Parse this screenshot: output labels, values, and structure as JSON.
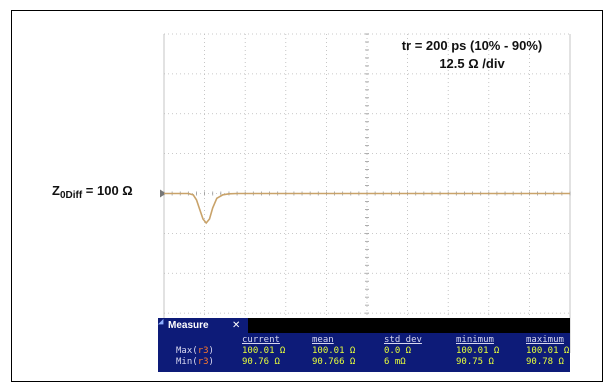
{
  "annotations": {
    "rise_time": "tr = 200 ps (10% - 90%)",
    "scale": "12.5 Ω /div",
    "impedance_prefix": "Z",
    "impedance_subscript": "0Diff",
    "impedance_suffix": " = 100 Ω"
  },
  "chart_data": {
    "type": "line",
    "title": "",
    "xlabel": "",
    "ylabel": "",
    "reference_label": "Z0Diff = 100 Ω",
    "y_units": "Ω",
    "y_per_div": 12.5,
    "ylim": [
      50,
      125
    ],
    "grid": true,
    "series": [
      {
        "x": [
          0,
          0.6,
          0.72,
          0.8,
          0.88,
          0.96,
          1.04,
          1.12,
          1.2,
          1.3,
          1.45,
          1.6,
          1.8,
          2.2,
          3,
          4,
          5,
          6,
          7,
          8,
          9,
          10
        ],
        "y": [
          100.0,
          100.0,
          99.6,
          98.0,
          95.0,
          92.0,
          90.76,
          92.0,
          95.5,
          98.5,
          99.6,
          99.9,
          100.0,
          100.0,
          100.0,
          100.0,
          100.0,
          100.0,
          100.0,
          100.0,
          100.0,
          100.01
        ]
      }
    ],
    "color": "#c9a36a"
  },
  "measure": {
    "tab_label": "Measure",
    "close_glyph": "✕",
    "headers": [
      "current",
      "mean",
      "std dev",
      "minimum",
      "maximum"
    ],
    "rows": [
      {
        "label": "Max(",
        "channel": "r3",
        "label_end": ")",
        "values": [
          "100.01 Ω",
          "100.01 Ω",
          "0.0 Ω",
          "100.01 Ω",
          "100.01 Ω"
        ]
      },
      {
        "label": "Min(",
        "channel": "r3",
        "label_end": ")",
        "values": [
          "90.76 Ω",
          "90.766 Ω",
          "6 mΩ",
          "90.75 Ω",
          "90.78 Ω"
        ]
      }
    ]
  }
}
